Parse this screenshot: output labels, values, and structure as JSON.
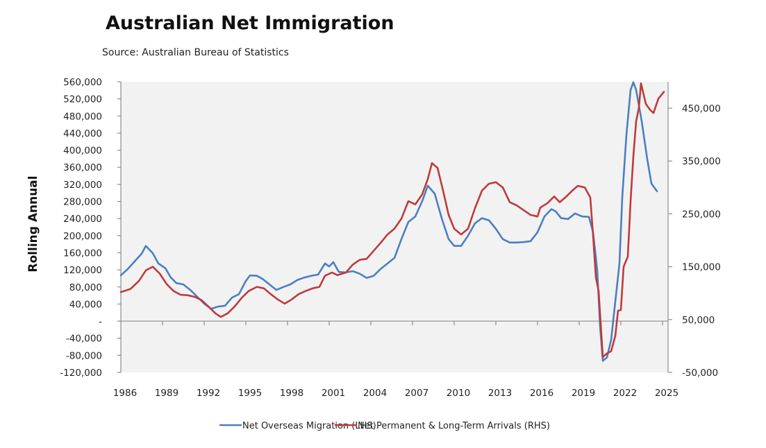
{
  "chart_data": {
    "type": "line",
    "title": "Australian Net Immigration",
    "subtitle": "Source: Australian Bureau of Statistics",
    "ylabel": "Rolling Annual",
    "xlabel": "",
    "xlim": [
      1986,
      2025.4
    ],
    "x_ticks": [
      "1986",
      "1989",
      "1992",
      "1995",
      "1998",
      "2001",
      "2004",
      "2007",
      "2010",
      "2013",
      "2016",
      "2019",
      "2022",
      "2025"
    ],
    "y_left": {
      "ylim": [
        -120000,
        560000
      ],
      "tick_values": [
        560000,
        520000,
        480000,
        440000,
        400000,
        360000,
        320000,
        280000,
        240000,
        200000,
        160000,
        120000,
        80000,
        40000,
        0,
        -40000,
        -80000,
        -120000
      ],
      "tick_labels": [
        "560,000",
        "520,000",
        "480,000",
        "440,000",
        "400,000",
        "360,000",
        "320,000",
        "280,000",
        "240,000",
        "200,000",
        "160,000",
        "120,000",
        "80,000",
        "40,000",
        "-",
        "-40,000",
        "-80,000",
        "-120,000"
      ]
    },
    "y_right": {
      "ylim": [
        -50000,
        500000
      ],
      "tick_values": [
        450000,
        350000,
        250000,
        150000,
        50000,
        -50000
      ],
      "tick_labels": [
        "450,000",
        "350,000",
        "250,000",
        "150,000",
        "50,000",
        "-50,000"
      ]
    },
    "grid": false,
    "legend_position": "bottom",
    "colors": {
      "blue": "#4a7fc1",
      "red": "#c0393b",
      "plot_bg": "#f2f2f2",
      "axis": "#8c8c8c"
    },
    "series": [
      {
        "name": "Net Overseas Migration (LHS)",
        "axis": "left",
        "color": "#4a7fc1",
        "points": [
          [
            1986.0,
            107000
          ],
          [
            1986.5,
            122000
          ],
          [
            1987.0,
            140000
          ],
          [
            1987.5,
            158000
          ],
          [
            1987.8,
            176000
          ],
          [
            1988.3,
            159000
          ],
          [
            1988.7,
            135000
          ],
          [
            1989.2,
            124000
          ],
          [
            1989.6,
            102000
          ],
          [
            1990.0,
            89000
          ],
          [
            1990.5,
            86000
          ],
          [
            1991.0,
            73000
          ],
          [
            1991.5,
            57000
          ],
          [
            1992.0,
            41000
          ],
          [
            1992.5,
            29000
          ],
          [
            1993.0,
            34000
          ],
          [
            1993.5,
            36000
          ],
          [
            1994.0,
            55000
          ],
          [
            1994.5,
            63000
          ],
          [
            1995.0,
            94000
          ],
          [
            1995.3,
            107000
          ],
          [
            1995.8,
            106000
          ],
          [
            1996.2,
            99000
          ],
          [
            1996.7,
            86000
          ],
          [
            1997.2,
            73000
          ],
          [
            1997.7,
            80000
          ],
          [
            1998.2,
            86000
          ],
          [
            1998.7,
            96000
          ],
          [
            1999.2,
            102000
          ],
          [
            1999.7,
            106000
          ],
          [
            2000.2,
            109000
          ],
          [
            2000.7,
            135000
          ],
          [
            2001.0,
            128000
          ],
          [
            2001.3,
            138000
          ],
          [
            2001.7,
            115000
          ],
          [
            2002.2,
            114000
          ],
          [
            2002.7,
            117000
          ],
          [
            2003.2,
            111000
          ],
          [
            2003.7,
            101000
          ],
          [
            2004.2,
            106000
          ],
          [
            2004.7,
            122000
          ],
          [
            2005.2,
            135000
          ],
          [
            2005.7,
            148000
          ],
          [
            2006.2,
            192000
          ],
          [
            2006.7,
            232000
          ],
          [
            2007.2,
            245000
          ],
          [
            2007.7,
            281000
          ],
          [
            2008.1,
            317000
          ],
          [
            2008.6,
            298000
          ],
          [
            2009.1,
            241000
          ],
          [
            2009.6,
            192000
          ],
          [
            2010.0,
            176000
          ],
          [
            2010.5,
            176000
          ],
          [
            2011.0,
            200000
          ],
          [
            2011.5,
            229000
          ],
          [
            2012.0,
            241000
          ],
          [
            2012.5,
            236000
          ],
          [
            2013.0,
            216000
          ],
          [
            2013.5,
            192000
          ],
          [
            2014.0,
            184000
          ],
          [
            2014.5,
            184000
          ],
          [
            2015.0,
            185000
          ],
          [
            2015.5,
            187000
          ],
          [
            2016.0,
            208000
          ],
          [
            2016.5,
            245000
          ],
          [
            2017.0,
            262000
          ],
          [
            2017.3,
            257000
          ],
          [
            2017.7,
            241000
          ],
          [
            2018.2,
            239000
          ],
          [
            2018.7,
            252000
          ],
          [
            2019.2,
            245000
          ],
          [
            2019.7,
            244000
          ],
          [
            2020.0,
            208000
          ],
          [
            2020.3,
            119000
          ],
          [
            2020.5,
            -11000
          ],
          [
            2020.7,
            -93000
          ],
          [
            2021.0,
            -85000
          ],
          [
            2021.3,
            -44000
          ],
          [
            2021.6,
            46000
          ],
          [
            2021.9,
            135000
          ],
          [
            2022.1,
            289000
          ],
          [
            2022.4,
            436000
          ],
          [
            2022.7,
            541000
          ],
          [
            2022.9,
            559000
          ],
          [
            2023.1,
            541000
          ],
          [
            2023.5,
            468000
          ],
          [
            2023.9,
            379000
          ],
          [
            2024.2,
            322000
          ],
          [
            2024.6,
            304000
          ]
        ]
      },
      {
        "name": "Net Permanent & Long-Term Arrivals (RHS)",
        "axis": "right",
        "color": "#c0393b",
        "points": [
          [
            1986.0,
            102000
          ],
          [
            1986.7,
            108000
          ],
          [
            1987.3,
            123000
          ],
          [
            1987.8,
            143000
          ],
          [
            1988.3,
            150000
          ],
          [
            1988.8,
            137000
          ],
          [
            1989.3,
            117000
          ],
          [
            1989.8,
            104000
          ],
          [
            1990.3,
            97000
          ],
          [
            1990.8,
            96000
          ],
          [
            1991.3,
            93000
          ],
          [
            1991.8,
            87000
          ],
          [
            1992.3,
            75000
          ],
          [
            1992.8,
            62000
          ],
          [
            1993.2,
            55000
          ],
          [
            1993.7,
            62000
          ],
          [
            1994.2,
            75000
          ],
          [
            1994.7,
            91000
          ],
          [
            1995.2,
            104000
          ],
          [
            1995.8,
            112000
          ],
          [
            1996.3,
            109000
          ],
          [
            1996.8,
            98000
          ],
          [
            1997.3,
            88000
          ],
          [
            1997.8,
            80000
          ],
          [
            1998.3,
            88000
          ],
          [
            1998.8,
            98000
          ],
          [
            1999.3,
            104000
          ],
          [
            1999.8,
            109000
          ],
          [
            2000.3,
            112000
          ],
          [
            2000.7,
            133000
          ],
          [
            2001.2,
            139000
          ],
          [
            2001.6,
            134000
          ],
          [
            2002.2,
            139000
          ],
          [
            2002.7,
            154000
          ],
          [
            2003.2,
            163000
          ],
          [
            2003.7,
            165000
          ],
          [
            2004.2,
            180000
          ],
          [
            2004.7,
            195000
          ],
          [
            2005.2,
            211000
          ],
          [
            2005.7,
            222000
          ],
          [
            2006.2,
            241000
          ],
          [
            2006.7,
            274000
          ],
          [
            2007.2,
            268000
          ],
          [
            2007.7,
            287000
          ],
          [
            2008.1,
            316000
          ],
          [
            2008.4,
            346000
          ],
          [
            2008.8,
            337000
          ],
          [
            2009.2,
            294000
          ],
          [
            2009.6,
            248000
          ],
          [
            2010.0,
            222000
          ],
          [
            2010.5,
            211000
          ],
          [
            2011.0,
            222000
          ],
          [
            2011.5,
            261000
          ],
          [
            2012.0,
            294000
          ],
          [
            2012.5,
            307000
          ],
          [
            2013.0,
            310000
          ],
          [
            2013.5,
            300000
          ],
          [
            2014.0,
            272000
          ],
          [
            2014.5,
            266000
          ],
          [
            2015.0,
            257000
          ],
          [
            2015.5,
            248000
          ],
          [
            2016.0,
            245000
          ],
          [
            2016.2,
            262000
          ],
          [
            2016.7,
            270000
          ],
          [
            2017.2,
            283000
          ],
          [
            2017.6,
            272000
          ],
          [
            2018.0,
            281000
          ],
          [
            2018.5,
            294000
          ],
          [
            2018.9,
            303000
          ],
          [
            2019.4,
            300000
          ],
          [
            2019.8,
            281000
          ],
          [
            2020.0,
            209000
          ],
          [
            2020.2,
            130000
          ],
          [
            2020.4,
            104000
          ],
          [
            2020.7,
            -21000
          ],
          [
            2021.0,
            -14000
          ],
          [
            2021.3,
            -10000
          ],
          [
            2021.6,
            19000
          ],
          [
            2021.8,
            67000
          ],
          [
            2022.0,
            68000
          ],
          [
            2022.2,
            150000
          ],
          [
            2022.5,
            169000
          ],
          [
            2022.7,
            274000
          ],
          [
            2022.9,
            359000
          ],
          [
            2023.1,
            425000
          ],
          [
            2023.3,
            451000
          ],
          [
            2023.45,
            497000
          ],
          [
            2023.8,
            458000
          ],
          [
            2024.1,
            447000
          ],
          [
            2024.35,
            441000
          ],
          [
            2024.7,
            468000
          ],
          [
            2025.1,
            481000
          ]
        ]
      }
    ]
  }
}
